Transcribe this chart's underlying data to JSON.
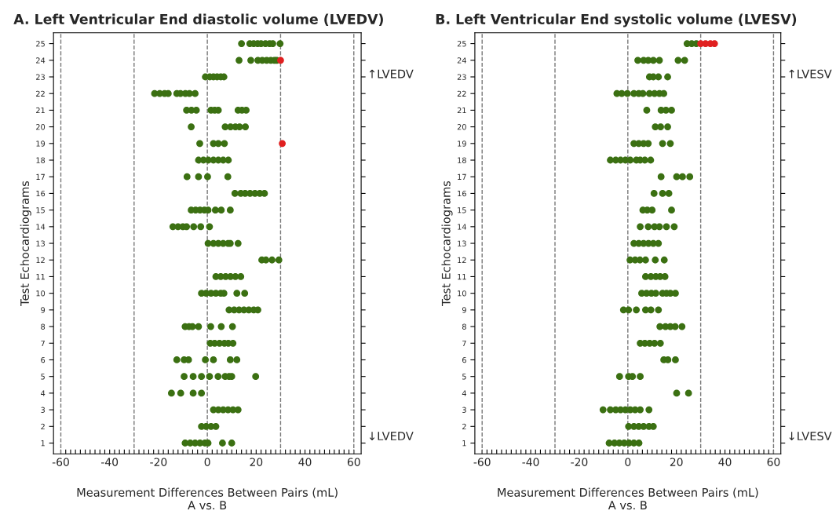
{
  "chart_data": [
    {
      "type": "scatter",
      "title": "A. Left Ventricular End diastolic volume (LVEDV)",
      "xlabel": "Measurement Differences Between Pairs (mL)\nA vs. B",
      "ylabel": "Test Echocardiograms",
      "marker": "circle",
      "grid": false,
      "legend": false,
      "xlim": [
        -63,
        63
      ],
      "ylim": [
        0.35,
        25.65
      ],
      "xticks": [
        -60,
        {
          "value": -58,
          "label": null
        },
        {
          "value": -56,
          "label": null
        },
        {
          "value": -54,
          "label": null
        },
        {
          "value": -52,
          "label": null
        },
        {
          "value": -50,
          "label": null
        },
        {
          "value": -48,
          "label": null
        },
        {
          "value": -46,
          "label": null
        },
        {
          "value": -44,
          "label": null
        },
        {
          "value": -42,
          "label": null
        },
        -40,
        {
          "value": -38,
          "label": null
        },
        {
          "value": -36,
          "label": null
        },
        {
          "value": -34,
          "label": null
        },
        {
          "value": -32,
          "label": null
        },
        {
          "value": -30,
          "label": null
        },
        {
          "value": -28,
          "label": null
        },
        {
          "value": -26,
          "label": null
        },
        {
          "value": -24,
          "label": null
        },
        {
          "value": -22,
          "label": null
        },
        -20,
        {
          "value": -18,
          "label": null
        },
        {
          "value": -16,
          "label": null
        },
        {
          "value": -14,
          "label": null
        },
        {
          "value": -12,
          "label": null
        },
        {
          "value": -10,
          "label": null
        },
        {
          "value": -8,
          "label": null
        },
        {
          "value": -6,
          "label": null
        },
        {
          "value": -4,
          "label": null
        },
        {
          "value": -2,
          "label": null
        },
        0,
        {
          "value": 2,
          "label": null
        },
        {
          "value": 4,
          "label": null
        },
        {
          "value": 6,
          "label": null
        },
        {
          "value": 8,
          "label": null
        },
        {
          "value": 10,
          "label": null
        },
        {
          "value": 12,
          "label": null
        },
        {
          "value": 14,
          "label": null
        },
        {
          "value": 16,
          "label": null
        },
        {
          "value": 18,
          "label": null
        },
        20,
        {
          "value": 22,
          "label": null
        },
        {
          "value": 24,
          "label": null
        },
        {
          "value": 26,
          "label": null
        },
        {
          "value": 28,
          "label": null
        },
        {
          "value": 30,
          "label": null
        },
        {
          "value": 32,
          "label": null
        },
        {
          "value": 34,
          "label": null
        },
        {
          "value": 36,
          "label": null
        },
        {
          "value": 38,
          "label": null
        },
        40,
        {
          "value": 42,
          "label": null
        },
        {
          "value": 44,
          "label": null
        },
        {
          "value": 46,
          "label": null
        },
        {
          "value": 48,
          "label": null
        },
        {
          "value": 50,
          "label": null
        },
        {
          "value": 52,
          "label": null
        },
        {
          "value": 54,
          "label": null
        },
        {
          "value": 56,
          "label": null
        },
        {
          "value": 58,
          "label": null
        },
        60
      ],
      "yticks": [
        1,
        2,
        3,
        4,
        5,
        6,
        7,
        8,
        9,
        10,
        11,
        12,
        13,
        14,
        15,
        16,
        17,
        18,
        19,
        20,
        21,
        22,
        23,
        24,
        25
      ],
      "ref_lines": [
        {
          "axis": "x",
          "value": -60,
          "color": "#777777",
          "line_style": "dashed"
        },
        {
          "axis": "x",
          "value": -30,
          "color": "#777777",
          "line_style": "dashed"
        },
        {
          "axis": "x",
          "value": 0,
          "color": "#777777",
          "line_style": "dashed"
        },
        {
          "axis": "x",
          "value": 30,
          "color": "#777777",
          "line_style": "dashed"
        },
        {
          "axis": "x",
          "value": 60,
          "color": "#777777",
          "line_style": "dashed"
        }
      ],
      "annotations": [
        "↑LVEDV",
        "↓LVEDV"
      ],
      "series": [
        {
          "color": "#3b7012",
          "x": [
            14,
            17.4,
            19,
            20.6,
            22,
            23.8,
            25.5,
            26.8,
            29.8,
            13,
            17.8,
            20.7,
            22.5,
            24.3,
            26,
            27.5,
            28.4,
            -0.8,
            1,
            2.5,
            4,
            5.5,
            6.8,
            -21.6,
            -19.5,
            -17.5,
            -16,
            -12.5,
            -11,
            -9,
            -7.3,
            -5,
            -8.5,
            -6.5,
            -4.5,
            1.5,
            3,
            4.5,
            12.6,
            14.2,
            15.9,
            -6.6,
            7.3,
            9.5,
            11.5,
            13.2,
            15.6,
            -3.1,
            2.5,
            4.5,
            7,
            -3.6,
            -1.6,
            0.4,
            2.5,
            4.5,
            6.5,
            8.6,
            -8.3,
            -3.6,
            0.1,
            8.4,
            11.3,
            13.7,
            15.5,
            17.5,
            19.5,
            21.5,
            23.4,
            -6.6,
            -4.8,
            -3,
            -1.2,
            0.3,
            3.3,
            5.7,
            9.4,
            -14.1,
            -12,
            -10,
            -8.5,
            -5.6,
            -2.7,
            0.9,
            0.3,
            2.5,
            4.5,
            6.5,
            8.5,
            9.4,
            12.6,
            22.3,
            24,
            26.5,
            29.3,
            3.5,
            5.5,
            7.5,
            9.5,
            11.5,
            13.7,
            -2.4,
            -0.5,
            1.5,
            3.5,
            5.5,
            6.8,
            12.1,
            15.3,
            8.9,
            11,
            13,
            15,
            17,
            19,
            20.7,
            -9.1,
            -7.5,
            -6.1,
            -3.6,
            1.4,
            5.7,
            10.3,
            1.2,
            3,
            5,
            7,
            8.6,
            10.5,
            -12.5,
            -9.5,
            -7.7,
            -0.8,
            2.5,
            9.4,
            12.1,
            -9.5,
            -5.8,
            -2.4,
            0.9,
            4.4,
            7.3,
            8.9,
            10,
            19.8,
            -14.7,
            -10.9,
            -5.8,
            -2.4,
            2.5,
            4.5,
            6.5,
            8.5,
            10.5,
            12.6,
            -2.4,
            -0.5,
            1.5,
            3.5,
            -9.1,
            -7,
            -5,
            -3,
            -1,
            0.3,
            6.2,
            10
          ],
          "values": [
            25,
            25,
            25,
            25,
            25,
            25,
            25,
            25,
            25,
            24,
            24,
            24,
            24,
            24,
            24,
            24,
            24,
            23,
            23,
            23,
            23,
            23,
            23,
            22,
            22,
            22,
            22,
            22,
            22,
            22,
            22,
            22,
            21,
            21,
            21,
            21,
            21,
            21,
            21,
            21,
            21,
            20,
            20,
            20,
            20,
            20,
            20,
            19,
            19,
            19,
            19,
            18,
            18,
            18,
            18,
            18,
            18,
            18,
            17,
            17,
            17,
            17,
            16,
            16,
            16,
            16,
            16,
            16,
            16,
            15,
            15,
            15,
            15,
            15,
            15,
            15,
            15,
            14,
            14,
            14,
            14,
            14,
            14,
            14,
            13,
            13,
            13,
            13,
            13,
            13,
            13,
            12,
            12,
            12,
            12,
            11,
            11,
            11,
            11,
            11,
            11,
            10,
            10,
            10,
            10,
            10,
            10,
            10,
            10,
            9,
            9,
            9,
            9,
            9,
            9,
            9,
            8,
            8,
            8,
            8,
            8,
            8,
            8,
            7,
            7,
            7,
            7,
            7,
            7,
            6,
            6,
            6,
            6,
            6,
            6,
            6,
            5,
            5,
            5,
            5,
            5,
            5,
            5,
            5,
            5,
            4,
            4,
            4,
            4,
            3,
            3,
            3,
            3,
            3,
            3,
            2,
            2,
            2,
            2,
            1,
            1,
            1,
            1,
            1,
            1,
            1,
            1
          ]
        },
        {
          "color": "#e02020",
          "x": [
            30,
            30.7
          ],
          "values": [
            24,
            19
          ]
        }
      ]
    },
    {
      "type": "scatter",
      "title": "B. Left Ventricular End systolic volume (LVESV)",
      "xlabel": "Measurement Differences Between Pairs (mL)\nA vs. B",
      "ylabel": "Test Echocardiograms",
      "marker": "circle",
      "grid": false,
      "legend": false,
      "xlim": [
        -63,
        63
      ],
      "ylim": [
        0.35,
        25.65
      ],
      "xticks": [
        -60,
        {
          "value": -58,
          "label": null
        },
        {
          "value": -56,
          "label": null
        },
        {
          "value": -54,
          "label": null
        },
        {
          "value": -52,
          "label": null
        },
        {
          "value": -50,
          "label": null
        },
        {
          "value": -48,
          "label": null
        },
        {
          "value": -46,
          "label": null
        },
        {
          "value": -44,
          "label": null
        },
        {
          "value": -42,
          "label": null
        },
        -40,
        {
          "value": -38,
          "label": null
        },
        {
          "value": -36,
          "label": null
        },
        {
          "value": -34,
          "label": null
        },
        {
          "value": -32,
          "label": null
        },
        {
          "value": -30,
          "label": null
        },
        {
          "value": -28,
          "label": null
        },
        {
          "value": -26,
          "label": null
        },
        {
          "value": -24,
          "label": null
        },
        {
          "value": -22,
          "label": null
        },
        -20,
        {
          "value": -18,
          "label": null
        },
        {
          "value": -16,
          "label": null
        },
        {
          "value": -14,
          "label": null
        },
        {
          "value": -12,
          "label": null
        },
        {
          "value": -10,
          "label": null
        },
        {
          "value": -8,
          "label": null
        },
        {
          "value": -6,
          "label": null
        },
        {
          "value": -4,
          "label": null
        },
        {
          "value": -2,
          "label": null
        },
        0,
        {
          "value": 2,
          "label": null
        },
        {
          "value": 4,
          "label": null
        },
        {
          "value": 6,
          "label": null
        },
        {
          "value": 8,
          "label": null
        },
        {
          "value": 10,
          "label": null
        },
        {
          "value": 12,
          "label": null
        },
        {
          "value": 14,
          "label": null
        },
        {
          "value": 16,
          "label": null
        },
        {
          "value": 18,
          "label": null
        },
        20,
        {
          "value": 22,
          "label": null
        },
        {
          "value": 24,
          "label": null
        },
        {
          "value": 26,
          "label": null
        },
        {
          "value": 28,
          "label": null
        },
        {
          "value": 30,
          "label": null
        },
        {
          "value": 32,
          "label": null
        },
        {
          "value": 34,
          "label": null
        },
        {
          "value": 36,
          "label": null
        },
        {
          "value": 38,
          "label": null
        },
        40,
        {
          "value": 42,
          "label": null
        },
        {
          "value": 44,
          "label": null
        },
        {
          "value": 46,
          "label": null
        },
        {
          "value": 48,
          "label": null
        },
        {
          "value": 50,
          "label": null
        },
        {
          "value": 52,
          "label": null
        },
        {
          "value": 54,
          "label": null
        },
        {
          "value": 56,
          "label": null
        },
        {
          "value": 58,
          "label": null
        },
        60
      ],
      "yticks": [
        1,
        2,
        3,
        4,
        5,
        6,
        7,
        8,
        9,
        10,
        11,
        12,
        13,
        14,
        15,
        16,
        17,
        18,
        19,
        20,
        21,
        22,
        23,
        24,
        25
      ],
      "ref_lines": [
        {
          "axis": "x",
          "value": -60,
          "color": "#777777",
          "line_style": "dashed"
        },
        {
          "axis": "x",
          "value": -30,
          "color": "#777777",
          "line_style": "dashed"
        },
        {
          "axis": "x",
          "value": 0,
          "color": "#777777",
          "line_style": "dashed"
        },
        {
          "axis": "x",
          "value": 30,
          "color": "#777777",
          "line_style": "dashed"
        },
        {
          "axis": "x",
          "value": 60,
          "color": "#777777",
          "line_style": "dashed"
        }
      ],
      "annotations": [
        "↑LVESV",
        "↓LVESV"
      ],
      "series": [
        {
          "color": "#3b7012",
          "x": [
            24.4,
            26.3,
            28.2,
            4.1,
            6.5,
            8.4,
            10.5,
            13,
            20.7,
            23.4,
            8.9,
            10.5,
            12.6,
            16.4,
            -4.5,
            -2.5,
            -0.2,
            2.5,
            4.5,
            6.2,
            8.9,
            11,
            13,
            14.8,
            7.8,
            13.7,
            15.7,
            18,
            11.3,
            13.5,
            16.4,
            2.5,
            4.5,
            6.5,
            8.4,
            14.3,
            17.5,
            -7.2,
            -5,
            -3,
            -1,
            1,
            3.5,
            5.1,
            7,
            9.4,
            13.7,
            20.1,
            22.5,
            25.5,
            10.8,
            14.3,
            16.9,
            6.2,
            8,
            10,
            18,
            5.1,
            8.4,
            11,
            13,
            15.9,
            19.1,
            2.5,
            4.5,
            6.5,
            8.5,
            10.5,
            12.6,
            0.9,
            3,
            5,
            7.3,
            11.3,
            15,
            7.3,
            9.5,
            11.5,
            13.3,
            15.3,
            5.7,
            7.7,
            9.7,
            11.5,
            14.3,
            15.9,
            17.5,
            19.6,
            -1.8,
            0.3,
            3.5,
            7.3,
            9.5,
            12.6,
            13.2,
            15.5,
            17.5,
            19.5,
            22.3,
            5.1,
            7,
            9,
            11,
            13.4,
            14.8,
            16.5,
            19.6,
            -3.4,
            0.3,
            1.9,
            5.1,
            20.1,
            25,
            -10.2,
            -7.2,
            -5,
            -3,
            -1,
            1,
            3,
            5.1,
            8.7,
            0.3,
            2.5,
            4.5,
            6.5,
            8.7,
            10.5,
            -7.7,
            -5.5,
            -3.5,
            -1.5,
            0.5,
            2.5,
            4.6
          ],
          "values": [
            25,
            25,
            25,
            24,
            24,
            24,
            24,
            24,
            24,
            24,
            23,
            23,
            23,
            23,
            22,
            22,
            22,
            22,
            22,
            22,
            22,
            22,
            22,
            22,
            21,
            21,
            21,
            21,
            20,
            20,
            20,
            19,
            19,
            19,
            19,
            19,
            19,
            18,
            18,
            18,
            18,
            18,
            18,
            18,
            18,
            18,
            17,
            17,
            17,
            17,
            16,
            16,
            16,
            15,
            15,
            15,
            15,
            14,
            14,
            14,
            14,
            14,
            14,
            13,
            13,
            13,
            13,
            13,
            13,
            12,
            12,
            12,
            12,
            12,
            12,
            11,
            11,
            11,
            11,
            11,
            10,
            10,
            10,
            10,
            10,
            10,
            10,
            10,
            9,
            9,
            9,
            9,
            9,
            9,
            8,
            8,
            8,
            8,
            8,
            7,
            7,
            7,
            7,
            7,
            6,
            6,
            6,
            5,
            5,
            5,
            5,
            4,
            4,
            3,
            3,
            3,
            3,
            3,
            3,
            3,
            3,
            3,
            2,
            2,
            2,
            2,
            2,
            2,
            1,
            1,
            1,
            1,
            1,
            1,
            1
          ]
        },
        {
          "color": "#e02020",
          "x": [
            30,
            32,
            34,
            35.7
          ],
          "values": [
            25,
            25,
            25,
            25
          ]
        }
      ]
    }
  ]
}
